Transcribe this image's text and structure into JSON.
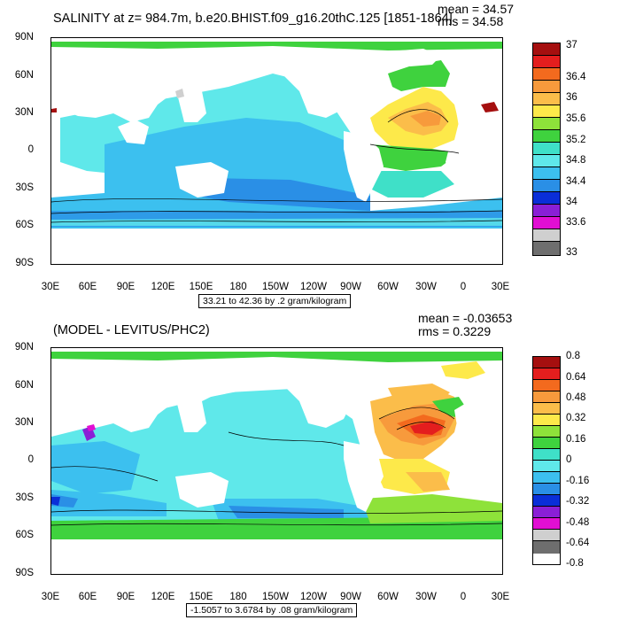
{
  "panels": [
    {
      "title": "SALINITY at z= 984.7m, b.e20.BHIST.f09_g16.20thC.125 [1851-1864]",
      "mean": "mean = 34.57",
      "rms": "rms = 34.58",
      "caption": "33.21 to 42.36 by .2 gram/kilogram",
      "colorbar": {
        "colors": [
          "#a50f0f",
          "#e41e1e",
          "#f36a1e",
          "#f79a3c",
          "#fbbd4a",
          "#fde94a",
          "#8ee23a",
          "#3fd23e",
          "#3fe0c8",
          "#5fe8ea",
          "#3cc0ef",
          "#2a8fe6",
          "#0a2ed8",
          "#8a1fd6",
          "#e10fd3",
          "#cfcfcf",
          "#6e6e6e"
        ],
        "labels": [
          "37",
          "36.4",
          "36",
          "35.6",
          "35.2",
          "34.8",
          "34.4",
          "34",
          "33.6",
          "33"
        ]
      }
    },
    {
      "title": "(MODEL - LEVITUS/PHC2)",
      "mean": "mean = -0.03653",
      "rms": "rms = 0.3229",
      "caption": "-1.5057 to 3.6784 by .08 gram/kilogram",
      "colorbar": {
        "colors": [
          "#a50f0f",
          "#e41e1e",
          "#f36a1e",
          "#f79a3c",
          "#fbbd4a",
          "#fde94a",
          "#8ee23a",
          "#3fd23e",
          "#3fe0c8",
          "#5fe8ea",
          "#3cc0ef",
          "#2a8fe6",
          "#0a2ed8",
          "#8a1fd6",
          "#e10fd3",
          "#cfcfcf",
          "#6e6e6e"
        ],
        "labels": [
          "0.8",
          "0.64",
          "0.48",
          "0.32",
          "0.16",
          "0",
          "-0.16",
          "-0.32",
          "-0.48",
          "-0.64",
          "-0.8"
        ]
      }
    }
  ],
  "axes": {
    "lat_labels": [
      "90N",
      "60N",
      "30N",
      "0",
      "30S",
      "60S",
      "90S"
    ],
    "lon_labels": [
      "30E",
      "60E",
      "90E",
      "120E",
      "150E",
      "180",
      "150W",
      "120W",
      "90W",
      "60W",
      "30W",
      "0",
      "30E"
    ]
  }
}
